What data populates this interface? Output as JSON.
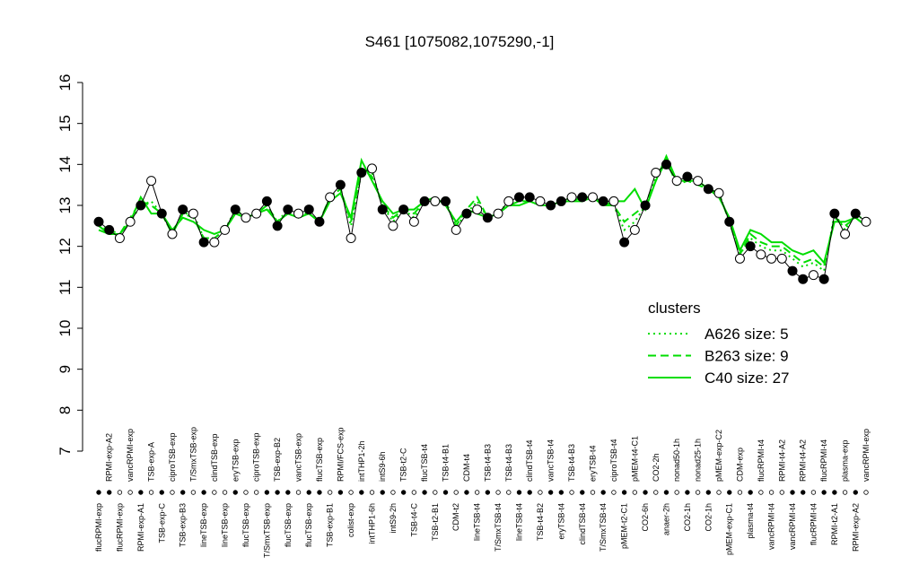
{
  "chart_data": {
    "type": "scatter",
    "title": "S461 [1075082,1075290,-1]",
    "ylim": [
      7,
      16
    ],
    "yticks": [
      7,
      8,
      9,
      10,
      11,
      12,
      13,
      14,
      15,
      16
    ],
    "categories": [
      "flucRPMI-exp",
      "RPMI-exp-A2",
      "flucRPMI-exp",
      "vancRPMI-exp",
      "RPMI-exp-A1",
      "TSB-exp-A",
      "TSB-exp-C",
      "ciproTSB-exp",
      "TSB-exp-B3",
      "T/SmxTSB-exp",
      "lineTSB-exp",
      "clindTSB-exp",
      "lineTSB-exp",
      "eryTSB-exp",
      "flucTSB-exp",
      "ciproTSB-exp",
      "T/SmxTSB-exp",
      "TSB-exp-B2",
      "flucTSB-exp",
      "vancTSB-exp",
      "flucTSB-exp",
      "flucTSB-exp",
      "TSB-exp-B1",
      "RPMI/FCS-exp",
      "colist-exp",
      "intTHP1-2h",
      "intTHP1-6h",
      "intS9-6h",
      "intS9-2h",
      "TSB-t2-C",
      "TSB-t4-C",
      "flucTSB-t4",
      "TSB-t2-B1",
      "TSB-t4-B1",
      "CDM-t2",
      "CDM-t4",
      "lineTSB-t4",
      "TSB-t4-B3",
      "T/SmxTSB-t4",
      "TSB-t4-B3",
      "lineTSB-t4",
      "clindTSB-t4",
      "TSB-t4-B2",
      "vancTSB-t4",
      "eryTSB-t4",
      "TSB-t4-B3",
      "clindTSB-t4",
      "eryTSB-t4",
      "T/SmxTSB-t4",
      "ciproTSB-t4",
      "pMEM-t2-C1",
      "pMEM-t4-C1",
      "CO2-6h",
      "CO2-2h",
      "anaer-2h",
      "nonad50-1h",
      "CO2-1h",
      "nonad25-1h",
      "CO2-1h",
      "pMEM-exp-C2",
      "pMEM-exp-C1",
      "CDM-exp",
      "plasma-t4",
      "flucRPMI-t4",
      "vancRPMI-t4",
      "RPMI-t4-A2",
      "vancRPMI-t4",
      "RPMI-t4-A2",
      "flucRPMI-t4",
      "flucRPMI-t4",
      "RPMI-t2-A1",
      "plasma-exp",
      "RPMI-exp-A2",
      "vancRPMI-exp"
    ],
    "values": [
      12.6,
      12.4,
      12.2,
      12.6,
      13.0,
      13.6,
      12.8,
      12.3,
      12.9,
      12.8,
      12.1,
      12.1,
      12.4,
      12.9,
      12.7,
      12.8,
      13.1,
      12.5,
      12.9,
      12.8,
      12.9,
      12.6,
      13.2,
      13.5,
      12.2,
      13.8,
      13.9,
      12.9,
      12.5,
      12.9,
      12.6,
      13.1,
      13.1,
      13.1,
      12.4,
      12.8,
      12.9,
      12.7,
      12.8,
      13.1,
      13.2,
      13.2,
      13.1,
      13.0,
      13.1,
      13.2,
      13.2,
      13.2,
      13.1,
      13.1,
      12.1,
      12.4,
      13.0,
      13.8,
      14.0,
      13.6,
      13.7,
      13.6,
      13.4,
      13.3,
      12.6,
      11.7,
      12.0,
      11.8,
      11.7,
      11.7,
      11.4,
      11.2,
      11.3,
      11.2,
      12.8,
      12.3,
      12.8,
      12.6
    ],
    "filled": [
      true,
      true,
      false,
      false,
      true,
      false,
      true,
      false,
      true,
      false,
      true,
      false,
      false,
      true,
      false,
      false,
      true,
      true,
      true,
      false,
      true,
      true,
      false,
      true,
      false,
      true,
      false,
      true,
      false,
      true,
      false,
      true,
      false,
      true,
      false,
      true,
      false,
      true,
      false,
      false,
      true,
      true,
      false,
      true,
      true,
      false,
      true,
      false,
      true,
      false,
      true,
      false,
      true,
      false,
      true,
      false,
      true,
      false,
      true,
      false,
      true,
      false,
      true,
      false,
      false,
      false,
      true,
      true,
      false,
      true,
      true,
      false,
      true,
      false
    ],
    "legend_title": "clusters",
    "series": [
      {
        "name": "A626 size: 5",
        "color": "#00dd00",
        "dash": "dotted",
        "values": [
          12.5,
          12.4,
          12.3,
          12.6,
          13.0,
          13.1,
          12.8,
          12.3,
          12.8,
          12.8,
          12.2,
          12.2,
          12.4,
          12.9,
          12.7,
          12.8,
          13.0,
          12.6,
          12.9,
          12.8,
          12.8,
          12.6,
          13.2,
          13.4,
          12.5,
          13.8,
          13.8,
          13.0,
          12.6,
          12.9,
          12.7,
          13.1,
          13.1,
          13.1,
          12.5,
          12.8,
          13.1,
          12.7,
          12.8,
          13.1,
          13.1,
          13.2,
          13.1,
          13.0,
          13.1,
          13.2,
          13.2,
          13.2,
          13.1,
          13.0,
          12.4,
          12.6,
          13.0,
          13.7,
          14.1,
          13.6,
          13.6,
          13.6,
          13.4,
          13.3,
          12.6,
          11.8,
          12.2,
          12.0,
          11.9,
          11.9,
          11.7,
          11.5,
          11.6,
          11.4,
          12.8,
          12.4,
          12.8,
          12.6
        ]
      },
      {
        "name": "B263 size: 9",
        "color": "#00dd00",
        "dash": "dashed",
        "values": [
          12.5,
          12.3,
          12.3,
          12.7,
          13.1,
          13.0,
          12.8,
          12.3,
          12.8,
          12.7,
          12.2,
          12.2,
          12.4,
          12.8,
          12.7,
          12.8,
          13.0,
          12.6,
          12.8,
          12.7,
          12.8,
          12.6,
          13.2,
          13.4,
          12.6,
          13.9,
          13.7,
          13.0,
          12.7,
          12.9,
          12.8,
          13.1,
          13.1,
          13.1,
          12.5,
          12.9,
          13.2,
          12.7,
          12.8,
          13.0,
          13.1,
          13.1,
          13.0,
          13.0,
          13.1,
          13.1,
          13.2,
          13.2,
          13.0,
          13.0,
          12.6,
          12.8,
          13.0,
          13.6,
          14.1,
          13.5,
          13.6,
          13.5,
          13.4,
          13.3,
          12.6,
          11.8,
          12.3,
          12.1,
          12.0,
          12.0,
          11.8,
          11.6,
          11.7,
          11.5,
          12.7,
          12.5,
          12.7,
          12.5
        ]
      },
      {
        "name": "C40 size: 27",
        "color": "#00dd00",
        "dash": "solid",
        "values": [
          12.4,
          12.3,
          12.3,
          12.6,
          13.2,
          12.8,
          12.8,
          12.4,
          12.7,
          12.6,
          12.4,
          12.3,
          12.4,
          12.8,
          12.7,
          12.8,
          12.9,
          12.6,
          12.8,
          12.7,
          12.8,
          12.6,
          13.1,
          13.3,
          12.7,
          14.1,
          13.6,
          13.1,
          12.8,
          12.9,
          12.9,
          13.1,
          13.2,
          13.0,
          12.6,
          12.9,
          12.8,
          12.7,
          12.8,
          13.0,
          13.0,
          13.1,
          13.0,
          13.0,
          13.1,
          13.1,
          13.1,
          13.2,
          13.0,
          13.1,
          13.1,
          13.4,
          12.9,
          13.6,
          14.2,
          13.6,
          13.6,
          13.6,
          13.4,
          13.2,
          12.7,
          11.9,
          12.4,
          12.3,
          12.1,
          12.1,
          11.9,
          11.8,
          11.9,
          11.6,
          12.6,
          12.6,
          12.7,
          12.5
        ]
      }
    ]
  }
}
